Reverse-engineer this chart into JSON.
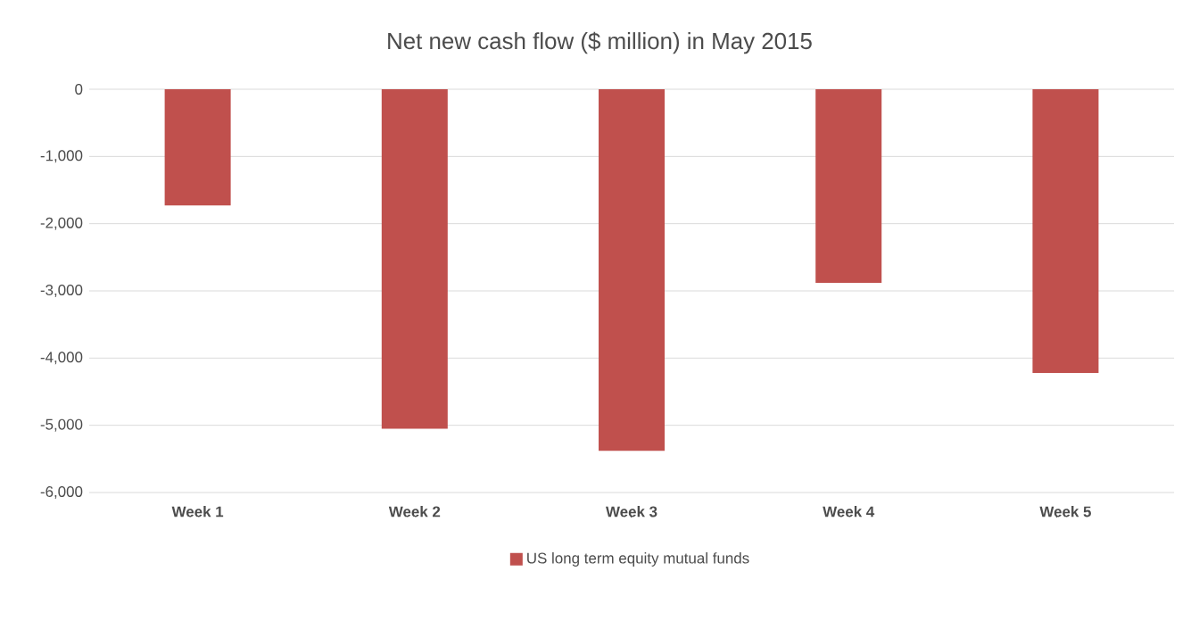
{
  "chart_data": {
    "type": "bar",
    "title": "Net new cash flow ($ million) in May 2015",
    "categories": [
      "Week 1",
      "Week 2",
      "Week 3",
      "Week 4",
      "Week 5"
    ],
    "series": [
      {
        "name": "US long term equity mutual funds",
        "color": "#c0504d",
        "values": [
          -1730,
          -5050,
          -5380,
          -2880,
          -4220
        ]
      }
    ],
    "ylim": [
      -6000,
      0
    ],
    "yticks": [
      {
        "value": -6000,
        "label": "-6,000"
      },
      {
        "value": -5000,
        "label": "-5,000"
      },
      {
        "value": -4000,
        "label": "-4,000"
      },
      {
        "value": -3000,
        "label": "-3,000"
      },
      {
        "value": -2000,
        "label": "-2,000"
      },
      {
        "value": -1000,
        "label": "-1,000"
      },
      0
    ],
    "grid": "y",
    "legend": "bottom"
  }
}
